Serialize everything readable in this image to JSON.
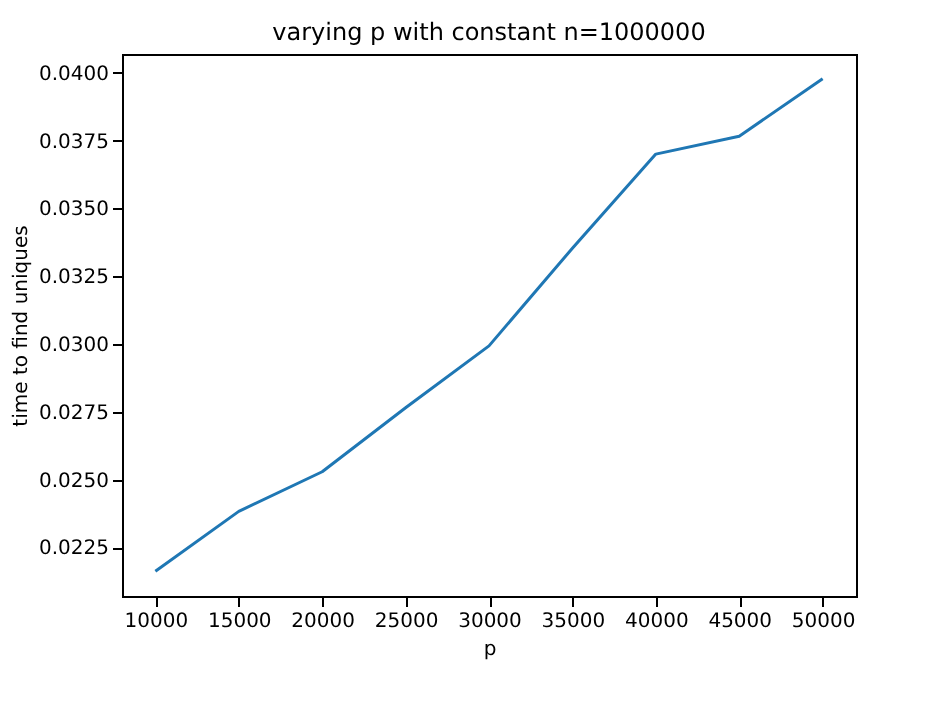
{
  "chart_data": {
    "type": "line",
    "title": "varying p with constant n=1000000",
    "xlabel": "p",
    "ylabel": "time to find uniques",
    "x": [
      10000,
      15000,
      20000,
      25000,
      30000,
      35000,
      40000,
      45000,
      50000
    ],
    "series": [
      {
        "color": "#1f77b4",
        "values": [
          0.02162,
          0.02383,
          0.02529,
          0.02765,
          0.02993,
          0.03353,
          0.037,
          0.03766,
          0.03978
        ]
      }
    ],
    "xlim": [
      8000,
      52000
    ],
    "xticks": [
      10000,
      15000,
      20000,
      25000,
      30000,
      35000,
      40000,
      45000,
      50000
    ],
    "ylim": [
      0.02071,
      0.04069
    ],
    "yticks": [
      {
        "value": 0.0225,
        "label": "0.0225"
      },
      {
        "value": 0.025,
        "label": "0.0250"
      },
      {
        "value": 0.0275,
        "label": "0.0275"
      },
      {
        "value": 0.03,
        "label": "0.0300"
      },
      {
        "value": 0.0325,
        "label": "0.0325"
      },
      {
        "value": 0.035,
        "label": "0.0350"
      },
      {
        "value": 0.0375,
        "label": "0.0375"
      },
      {
        "value": 0.04,
        "label": "0.0400"
      }
    ],
    "grid": false,
    "marker": "none",
    "line_style": "solid"
  }
}
